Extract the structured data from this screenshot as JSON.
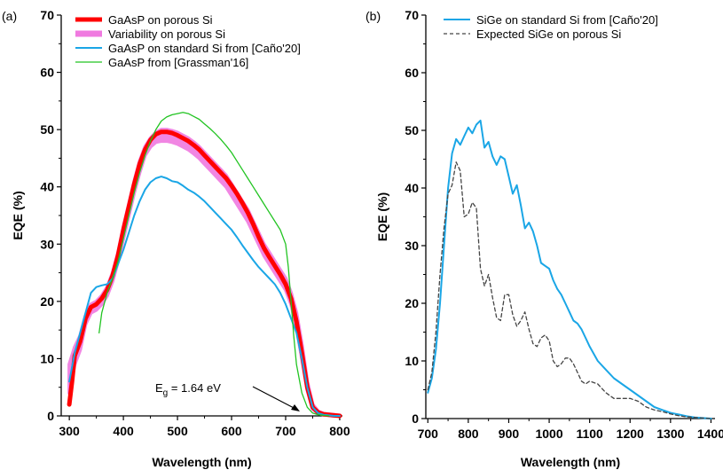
{
  "figure": {
    "panel_a_label": "(a)",
    "panel_b_label": "(b)",
    "annotation_main": "E",
    "annotation_sub": "g",
    "annotation_rest": " = 1.64 eV"
  },
  "colors": {
    "gaasp_porous": "#ff0000",
    "variability": "#f07ae0",
    "standard": "#1aa6e6",
    "grassman": "#22c422",
    "expected": "#444444"
  },
  "chart_data": [
    {
      "type": "line",
      "panel": "(a)",
      "xlabel": "Wavelength (nm)",
      "ylabel": "EQE (%)",
      "xlim": [
        285,
        805
      ],
      "ylim": [
        0,
        70
      ],
      "xticks": [
        300,
        400,
        500,
        600,
        700,
        800
      ],
      "yticks": [
        0,
        10,
        20,
        30,
        40,
        50,
        60,
        70
      ],
      "legend_position": "top-left",
      "grid": false,
      "series": [
        {
          "name": "Variability on porous Si",
          "style": "band",
          "x": [
            300,
            310,
            320,
            330,
            340,
            350,
            360,
            370,
            380,
            390,
            400,
            410,
            420,
            430,
            440,
            450,
            460,
            470,
            480,
            490,
            500,
            510,
            520,
            530,
            540,
            550,
            560,
            570,
            580,
            590,
            600,
            610,
            620,
            630,
            640,
            650,
            660,
            670,
            680,
            690,
            700,
            710,
            720,
            730,
            740,
            750,
            760,
            770,
            780,
            790,
            800
          ],
          "upper": [
            9,
            12,
            14,
            17.5,
            19.5,
            20,
            21,
            22.5,
            25,
            28.5,
            33,
            37,
            41,
            44.5,
            47,
            48.5,
            49.5,
            50,
            50,
            49.8,
            49.5,
            49,
            48.5,
            47.8,
            47,
            46,
            45,
            44,
            43,
            42,
            40.5,
            39,
            37.5,
            36,
            34,
            32,
            30,
            28.5,
            27,
            25.5,
            24,
            21.5,
            18,
            12.5,
            6,
            2,
            0.8,
            0.4,
            0.3,
            0.2,
            0.1
          ],
          "lower": [
            4,
            9,
            11.5,
            16,
            18,
            18.5,
            19.5,
            21,
            23.5,
            27,
            31,
            35,
            39,
            42.5,
            45.5,
            47,
            47.8,
            48,
            48,
            47.8,
            47.5,
            47,
            46.5,
            45.8,
            45,
            44,
            43,
            42,
            41,
            40,
            38.5,
            37,
            35.5,
            34,
            32,
            30,
            28,
            26.5,
            25,
            23.5,
            22,
            19.5,
            15.5,
            10,
            4.5,
            1.2,
            0.5,
            0.2,
            0.1,
            0,
            0
          ]
        },
        {
          "name": "GaAsP on porous Si",
          "x": [
            300,
            305,
            310,
            320,
            330,
            340,
            350,
            360,
            370,
            380,
            390,
            400,
            410,
            420,
            430,
            440,
            450,
            460,
            470,
            480,
            490,
            500,
            510,
            520,
            530,
            540,
            550,
            560,
            570,
            580,
            590,
            600,
            610,
            620,
            630,
            640,
            650,
            660,
            670,
            680,
            690,
            700,
            710,
            720,
            730,
            740,
            750,
            760,
            770,
            780,
            790,
            800
          ],
          "y": [
            2,
            6,
            10.5,
            13,
            17,
            19,
            19.5,
            20.5,
            22,
            24.5,
            28,
            32.5,
            36.5,
            40.5,
            44,
            46.5,
            48.2,
            49.2,
            49.6,
            49.6,
            49.4,
            49,
            48.5,
            48,
            47.3,
            46.5,
            45.5,
            44.5,
            43.5,
            42.5,
            41.5,
            40.2,
            38.8,
            37.2,
            35.5,
            33.5,
            31.3,
            29.3,
            27.7,
            26.2,
            24.7,
            23,
            20.5,
            16.5,
            11,
            5,
            1.5,
            0.6,
            0.3,
            0.2,
            0.1,
            0
          ]
        },
        {
          "name": "GaAsP on standard Si from [Caño'20]",
          "x": [
            300,
            310,
            320,
            330,
            340,
            350,
            360,
            370,
            380,
            390,
            400,
            410,
            420,
            430,
            440,
            450,
            460,
            470,
            480,
            490,
            500,
            510,
            520,
            530,
            540,
            550,
            560,
            570,
            580,
            590,
            600,
            610,
            620,
            630,
            640,
            650,
            660,
            670,
            680,
            690,
            700,
            710,
            720,
            730,
            740,
            750,
            760,
            770,
            780,
            790,
            800
          ],
          "y": [
            6,
            11,
            14.5,
            18,
            21.5,
            22.5,
            22.8,
            23,
            24,
            26.5,
            29,
            32,
            35,
            37.5,
            39.5,
            40.8,
            41.5,
            41.8,
            41.5,
            41,
            40.8,
            40.2,
            39.5,
            39,
            38.3,
            37.5,
            36.5,
            35.5,
            34.5,
            33.5,
            32.5,
            31.2,
            29.8,
            28.5,
            27.2,
            26,
            25,
            24,
            23,
            21.5,
            19.5,
            17,
            14.5,
            10,
            5,
            1.5,
            0.5,
            0.2,
            0.1,
            0,
            0
          ]
        },
        {
          "name": "GaAsP from [Grassman'16]",
          "x": [
            355,
            360,
            370,
            380,
            390,
            400,
            410,
            420,
            430,
            440,
            450,
            460,
            470,
            480,
            490,
            500,
            510,
            520,
            530,
            540,
            550,
            560,
            570,
            580,
            590,
            600,
            610,
            620,
            630,
            640,
            650,
            660,
            670,
            680,
            690,
            700,
            705,
            710,
            715,
            720,
            730,
            740,
            750,
            760,
            770,
            780
          ],
          "y": [
            14.5,
            18,
            21.5,
            24,
            27,
            31,
            35,
            39,
            42.5,
            45.5,
            48,
            50,
            51.5,
            52.2,
            52.6,
            52.8,
            53,
            52.8,
            52.3,
            51.8,
            51,
            50.2,
            49.3,
            48.3,
            47.2,
            46,
            44.5,
            43,
            41.5,
            40,
            38.5,
            37,
            35.5,
            34,
            32.5,
            30,
            26,
            20,
            14,
            9,
            4,
            1.5,
            0.5,
            0.2,
            0.1,
            0
          ]
        }
      ]
    },
    {
      "type": "line",
      "panel": "(b)",
      "xlabel": "Wavelength (nm)",
      "ylabel": "EQE (%)",
      "xlim": [
        695,
        1410
      ],
      "ylim": [
        0,
        70
      ],
      "xticks": [
        700,
        800,
        900,
        1000,
        1100,
        1200,
        1300,
        1400
      ],
      "yticks": [
        0,
        10,
        20,
        30,
        40,
        50,
        60,
        70
      ],
      "legend_position": "top-left",
      "grid": false,
      "series": [
        {
          "name": "SiGe on standard Si from [Caño'20]",
          "x": [
            700,
            710,
            720,
            730,
            740,
            750,
            760,
            770,
            780,
            790,
            800,
            810,
            820,
            830,
            840,
            850,
            860,
            870,
            880,
            890,
            900,
            910,
            920,
            930,
            940,
            950,
            960,
            970,
            980,
            990,
            1000,
            1010,
            1020,
            1030,
            1040,
            1050,
            1060,
            1070,
            1080,
            1090,
            1100,
            1120,
            1140,
            1160,
            1180,
            1200,
            1220,
            1240,
            1260,
            1280,
            1300,
            1320,
            1340,
            1360,
            1380,
            1400
          ],
          "y": [
            4.5,
            7,
            12,
            20,
            30,
            40,
            46,
            48.5,
            47.5,
            49,
            50.5,
            49.5,
            51,
            51.7,
            47,
            48,
            45.5,
            44,
            45.5,
            45,
            42,
            39,
            40.5,
            37,
            33,
            34,
            32.5,
            30,
            27,
            26.5,
            26,
            24,
            22.5,
            21.5,
            20,
            18.5,
            17,
            16.5,
            15.5,
            14,
            12.5,
            10,
            8.5,
            7,
            6,
            5,
            4,
            3,
            2,
            1.5,
            1,
            0.7,
            0.4,
            0.2,
            0.1,
            0
          ]
        },
        {
          "name": "Expected SiGe on porous Si",
          "dashed": true,
          "x": [
            700,
            710,
            720,
            730,
            740,
            750,
            760,
            770,
            780,
            790,
            800,
            810,
            820,
            830,
            840,
            850,
            860,
            870,
            880,
            890,
            900,
            910,
            920,
            930,
            940,
            950,
            960,
            970,
            980,
            990,
            1000,
            1010,
            1020,
            1030,
            1040,
            1050,
            1060,
            1070,
            1080,
            1090,
            1100,
            1120,
            1140,
            1160,
            1180,
            1200,
            1220,
            1240,
            1260,
            1280,
            1300,
            1320,
            1340,
            1360,
            1380,
            1400
          ],
          "y": [
            5,
            8,
            15,
            25,
            33,
            39,
            40.5,
            44.5,
            43,
            35,
            35.5,
            37.5,
            36.5,
            26,
            23,
            25,
            21,
            17.5,
            17,
            21.5,
            21.5,
            18,
            16,
            17,
            18.5,
            15.5,
            13,
            12.5,
            14,
            14.5,
            13.5,
            10,
            9,
            9.5,
            10.5,
            10.5,
            9.5,
            8,
            6.5,
            6,
            6.5,
            6,
            4.5,
            3.5,
            3.5,
            3.5,
            3,
            2,
            1.5,
            1.2,
            0.8,
            0.5,
            0.3,
            0.2,
            0.1,
            0
          ]
        }
      ]
    }
  ]
}
